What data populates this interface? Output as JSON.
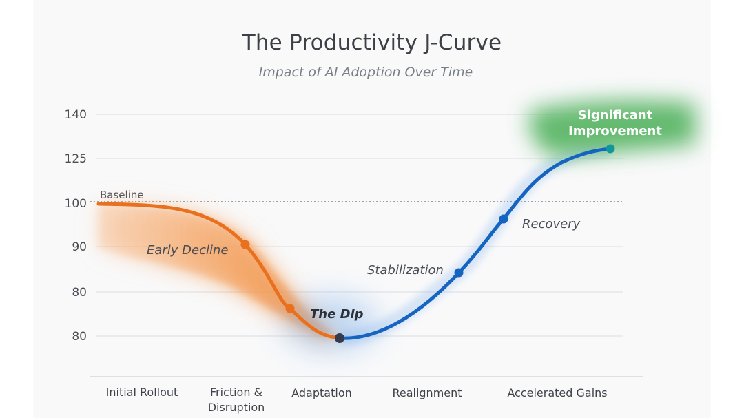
{
  "chart_data": {
    "type": "line",
    "title": "The Productivity J-Curve",
    "subtitle": "Impact of AI Adoption Over Time",
    "y_tick_labels": [
      "140",
      "125",
      "100",
      "90",
      "80",
      "80"
    ],
    "categories": [
      "Initial Rollout",
      "Friction & Disruption",
      "Adaptation",
      "Realignment",
      "Accelerated Gains"
    ],
    "baseline": {
      "label": "Baseline",
      "value": 100
    },
    "curve_points": [
      {
        "x": "Initial Rollout",
        "y": 100
      },
      {
        "label": "Early Decline",
        "y": 90.5
      },
      {
        "label": "",
        "y": 80.5
      },
      {
        "label": "The Dip",
        "y": 76.5
      },
      {
        "label": "Stabilization",
        "y": 84
      },
      {
        "label": "Recovery",
        "y": 96
      },
      {
        "label": "Significant Improvement",
        "y": 126
      }
    ],
    "stage_labels": [
      "Early Decline",
      "The Dip",
      "Stabilization",
      "Recovery"
    ],
    "highlight_label_lines": [
      "Significant",
      "Improvement"
    ],
    "colors": {
      "decline": "#e8701e",
      "recovery": "#1565c0",
      "improvement": "#43a047",
      "dip_marker": "#353b4a",
      "peak_marker": "#10979a",
      "grid": "#e2e3e6"
    },
    "grid": true
  }
}
